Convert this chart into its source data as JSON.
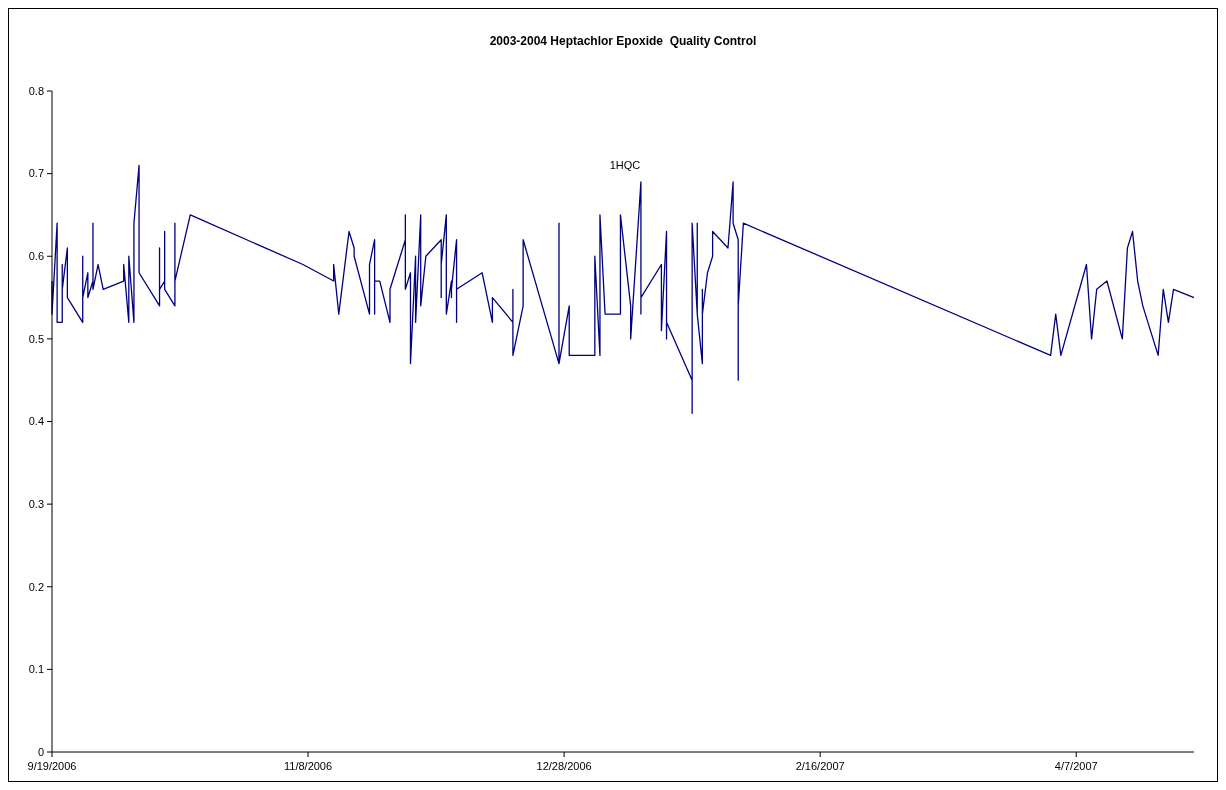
{
  "chart_data": {
    "type": "line",
    "title": "2003-2004 Heptachlor Epoxide  Quality Control",
    "annotations": [
      "1HQC"
    ],
    "x": [
      "2006-09-19",
      "2006-09-19",
      "2006-09-20",
      "2006-09-20",
      "2006-09-21",
      "2006-09-21",
      "2006-09-21",
      "2006-09-22",
      "2006-09-22",
      "2006-09-25",
      "2006-09-25",
      "2006-09-25",
      "2006-09-26",
      "2006-09-26",
      "2006-09-27",
      "2006-09-27",
      "2006-09-27",
      "2006-09-28",
      "2006-09-29",
      "2006-10-03",
      "2006-10-03",
      "2006-10-04",
      "2006-10-04",
      "2006-10-05",
      "2006-10-05",
      "2006-10-06",
      "2006-10-06",
      "2006-10-10",
      "2006-10-10",
      "2006-10-10",
      "2006-10-11",
      "2006-10-11",
      "2006-10-11",
      "2006-10-13",
      "2006-10-13",
      "2006-10-13",
      "2006-10-16",
      "2006-11-07",
      "2006-11-07",
      "2006-11-13",
      "2006-11-13",
      "2006-11-14",
      "2006-11-16",
      "2006-11-17",
      "2006-11-17",
      "2006-11-20",
      "2006-11-20",
      "2006-11-21",
      "2006-11-21",
      "2006-11-21",
      "2006-11-22",
      "2006-11-24",
      "2006-11-24",
      "2006-11-27",
      "2006-11-27",
      "2006-11-27",
      "2006-11-28",
      "2006-11-28",
      "2006-11-29",
      "2006-11-29",
      "2006-11-30",
      "2006-11-30",
      "2006-12-01",
      "2006-12-04",
      "2006-12-04",
      "2006-12-04",
      "2006-12-05",
      "2006-12-05",
      "2006-12-06",
      "2006-12-06",
      "2006-12-06",
      "2006-12-07",
      "2006-12-07",
      "2006-12-07",
      "2006-12-12",
      "2006-12-14",
      "2006-12-14",
      "2006-12-18",
      "2006-12-18",
      "2006-12-18",
      "2006-12-20",
      "2006-12-20",
      "2006-12-27",
      "2006-12-27",
      "2006-12-27",
      "2006-12-29",
      "2006-12-29",
      "2007-01-03",
      "2007-01-03",
      "2007-01-04",
      "2007-01-04",
      "2007-01-05",
      "2007-01-08",
      "2007-01-08",
      "2007-01-10",
      "2007-01-10",
      "2007-01-12",
      "2007-01-12",
      "2007-01-12",
      "2007-01-16",
      "2007-01-16",
      "2007-01-17",
      "2007-01-17",
      "2007-01-17",
      "2007-01-22",
      "2007-01-22",
      "2007-01-22",
      "2007-01-23",
      "2007-01-23",
      "2007-01-23",
      "2007-01-24",
      "2007-01-24",
      "2007-01-24",
      "2007-01-25",
      "2007-01-26",
      "2007-01-26",
      "2007-01-29",
      "2007-01-30",
      "2007-01-30",
      "2007-01-31",
      "2007-01-31",
      "2007-01-31",
      "2007-02-01",
      "2007-04-02",
      "2007-04-03",
      "2007-04-04",
      "2007-04-09",
      "2007-04-10",
      "2007-04-11",
      "2007-04-13",
      "2007-04-16",
      "2007-04-17",
      "2007-04-18",
      "2007-04-19",
      "2007-04-20",
      "2007-04-23",
      "2007-04-24",
      "2007-04-25",
      "2007-04-26",
      "2007-04-30"
    ],
    "series": [
      {
        "color": "#000080",
        "values": [
          0.57,
          0.53,
          0.64,
          0.52,
          0.52,
          0.59,
          0.56,
          0.61,
          0.55,
          0.52,
          0.6,
          0.55,
          0.58,
          0.55,
          0.57,
          0.64,
          0.56,
          0.59,
          0.56,
          0.57,
          0.59,
          0.52,
          0.6,
          0.52,
          0.64,
          0.71,
          0.58,
          0.54,
          0.61,
          0.56,
          0.57,
          0.63,
          0.56,
          0.54,
          0.64,
          0.57,
          0.65,
          0.59,
          0.59,
          0.57,
          0.59,
          0.53,
          0.63,
          0.61,
          0.6,
          0.53,
          0.59,
          0.62,
          0.53,
          0.57,
          0.57,
          0.52,
          0.56,
          0.62,
          0.65,
          0.56,
          0.58,
          0.47,
          0.6,
          0.52,
          0.65,
          0.54,
          0.6,
          0.62,
          0.55,
          0.59,
          0.65,
          0.53,
          0.57,
          0.55,
          0.56,
          0.62,
          0.52,
          0.56,
          0.58,
          0.52,
          0.55,
          0.52,
          0.56,
          0.48,
          0.54,
          0.62,
          0.47,
          0.64,
          0.47,
          0.54,
          0.48,
          0.48,
          0.6,
          0.48,
          0.65,
          0.53,
          0.53,
          0.65,
          0.54,
          0.5,
          0.69,
          0.53,
          0.55,
          0.59,
          0.51,
          0.63,
          0.5,
          0.52,
          0.45,
          0.41,
          0.64,
          0.53,
          0.64,
          0.53,
          0.47,
          0.56,
          0.53,
          0.58,
          0.6,
          0.63,
          0.61,
          0.69,
          0.64,
          0.62,
          0.45,
          0.54,
          0.64,
          0.48,
          0.53,
          0.48,
          0.59,
          0.5,
          0.56,
          0.57,
          0.5,
          0.61,
          0.63,
          0.57,
          0.54,
          0.48,
          0.56,
          0.52,
          0.56,
          0.55
        ]
      }
    ],
    "xlim": [
      "2006-09-19",
      "2007-04-30"
    ],
    "xticks": [
      {
        "value": "2006-09-19",
        "label": "9/19/2006"
      },
      {
        "value": "2006-11-08",
        "label": "11/8/2006"
      },
      {
        "value": "2006-12-28",
        "label": "12/28/2006"
      },
      {
        "value": "2007-02-16",
        "label": "2/16/2007"
      },
      {
        "value": "2007-04-07",
        "label": "4/7/2007"
      }
    ],
    "ylim": [
      0,
      0.8
    ],
    "yticks": [
      0,
      0.1,
      0.2,
      0.3,
      0.4,
      0.5,
      0.6,
      0.7,
      0.8
    ],
    "grid": false,
    "marker": "none",
    "line_style": "solid"
  }
}
